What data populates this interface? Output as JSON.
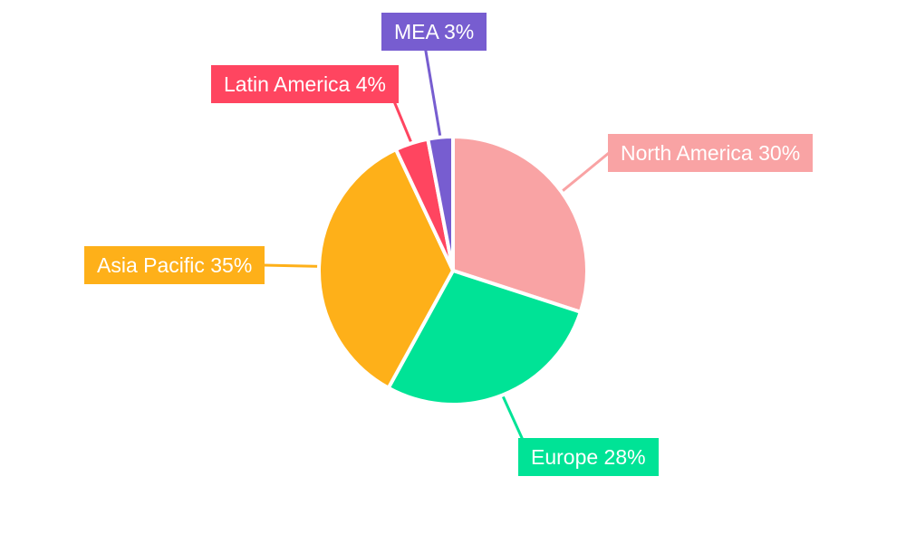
{
  "chart_data": {
    "type": "pie",
    "title": "",
    "legend_position": "none",
    "background": "#ffffff",
    "label_text_color": "#ffffff",
    "slice_border_color": "#ffffff",
    "start_angle_deg": 0,
    "direction": "clockwise",
    "total": 100,
    "slices": [
      {
        "name": "North America",
        "value": 30,
        "label": "North America 30%",
        "color": "#F9A3A4"
      },
      {
        "name": "Europe",
        "value": 28,
        "label": "Europe 28%",
        "color": "#00E396"
      },
      {
        "name": "Asia Pacific",
        "value": 35,
        "label": "Asia Pacific 35%",
        "color": "#FEB019"
      },
      {
        "name": "Latin America",
        "value": 4,
        "label": "Latin America 4%",
        "color": "#FF4560"
      },
      {
        "name": "MEA",
        "value": 3,
        "label": "MEA 3%",
        "color": "#775DD0"
      }
    ]
  }
}
